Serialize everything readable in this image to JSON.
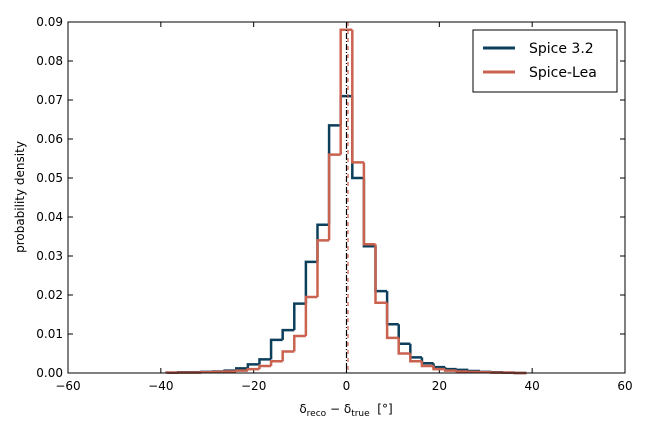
{
  "chart_data": {
    "type": "step-histogram",
    "ylabel": "probability density",
    "xlabel": [
      "δ",
      "reco",
      " − δ",
      "true",
      "  [°]"
    ],
    "bins": [
      -38.75,
      -36.25,
      -33.75,
      -31.25,
      -28.75,
      -26.25,
      -23.75,
      -21.25,
      -18.75,
      -16.25,
      -13.75,
      -11.25,
      -8.75,
      -6.25,
      -3.75,
      -1.25,
      1.25,
      3.75,
      6.25,
      8.75,
      11.25,
      13.75,
      16.25,
      18.75,
      21.25,
      23.75,
      26.25,
      28.75,
      31.25,
      33.75,
      36.25,
      38.75
    ],
    "series": [
      {
        "name": "Spice 3.2",
        "color": "#0c3f5c",
        "values": [
          0.0001,
          0.0002,
          0.0002,
          0.0003,
          0.0004,
          0.0006,
          0.0012,
          0.0022,
          0.0035,
          0.0085,
          0.011,
          0.0178,
          0.0285,
          0.038,
          0.0635,
          0.071,
          0.05,
          0.0325,
          0.021,
          0.0125,
          0.0075,
          0.004,
          0.0025,
          0.0015,
          0.001,
          0.0008,
          0.0005,
          0.0003,
          0.0002,
          0.0001,
          0.0
        ]
      },
      {
        "name": "Spice-Lea",
        "color": "#c9624f",
        "values": [
          0.0001,
          0.0001,
          0.0001,
          0.0002,
          0.0003,
          0.0004,
          0.0006,
          0.001,
          0.0018,
          0.003,
          0.0055,
          0.0095,
          0.0195,
          0.034,
          0.056,
          0.088,
          0.054,
          0.033,
          0.018,
          0.009,
          0.005,
          0.003,
          0.0018,
          0.001,
          0.0006,
          0.0004,
          0.0003,
          0.0002,
          0.0001,
          0.0001,
          0.0
        ]
      }
    ],
    "vlines": [
      0
    ],
    "xlim": [
      -60,
      60
    ],
    "xticks": [
      {
        "value": -60,
        "label": "−60"
      },
      {
        "value": -40,
        "label": "−40"
      },
      {
        "value": -20,
        "label": "−20"
      },
      0,
      20,
      40,
      60
    ],
    "ylim": [
      0,
      0.09
    ],
    "yticks": [
      {
        "value": 0,
        "label": "0.00"
      },
      {
        "value": 0.01,
        "label": "0.01"
      },
      {
        "value": 0.02,
        "label": "0.02"
      },
      {
        "value": 0.03,
        "label": "0.03"
      },
      {
        "value": 0.04,
        "label": "0.04"
      },
      {
        "value": 0.05,
        "label": "0.05"
      },
      {
        "value": 0.06,
        "label": "0.06"
      },
      {
        "value": 0.07,
        "label": "0.07"
      },
      {
        "value": 0.08,
        "label": "0.08"
      },
      {
        "value": 0.09,
        "label": "0.09"
      }
    ],
    "legend": "upper right"
  }
}
